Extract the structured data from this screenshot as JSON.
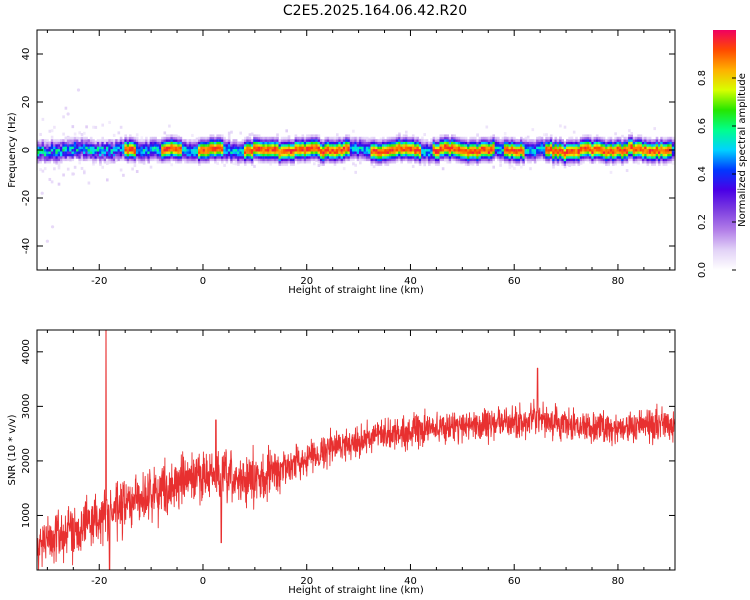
{
  "title": "C2E5.2025.164.06.42.R20",
  "colors": {
    "signal_line": "#e83030",
    "frame": "#000000",
    "background": "#ffffff"
  },
  "chart_data": [
    {
      "type": "heatmap",
      "xlabel": "Height of straight line (km)",
      "ylabel": "Frequency (Hz)",
      "xlim": [
        -32,
        91
      ],
      "ylim": [
        -50,
        50
      ],
      "x_ticks": [
        -20,
        0,
        20,
        40,
        60,
        80
      ],
      "y_ticks": [
        -40,
        -20,
        0,
        20,
        40
      ],
      "colorbar": {
        "label": "Normalized spectral amplitude",
        "range": [
          0.0,
          1.0
        ],
        "ticks": [
          "0.0",
          "0.2",
          "0.4",
          "0.6",
          "0.8"
        ],
        "colormap": [
          "#ffffff",
          "#e2d2f7",
          "#b27ee8",
          "#7d3ee0",
          "#4a00e6",
          "#0038ff",
          "#00d2ff",
          "#00ff8c",
          "#26e600",
          "#d8ff00",
          "#ffb000",
          "#ff4a00",
          "#f00060"
        ]
      },
      "description_values": {
        "center_frequency_hz": 0,
        "band_halfwidth_hz": 5,
        "high_amplitude_segments_km": [
          [
            -15,
            -13
          ],
          [
            -8,
            -4
          ],
          [
            -1,
            4
          ],
          [
            8,
            28
          ],
          [
            32,
            42
          ],
          [
            44,
            56
          ],
          [
            58,
            62
          ],
          [
            66,
            90
          ]
        ]
      }
    },
    {
      "type": "line",
      "xlabel": "Height of straight line (km)",
      "ylabel": "SNR (10 * v/v)",
      "xlim": [
        -32,
        91
      ],
      "ylim": [
        0,
        4400
      ],
      "x_ticks": [
        -20,
        0,
        20,
        40,
        60,
        80
      ],
      "y_ticks": [
        1000,
        2000,
        3000,
        4000
      ],
      "trend_x": [
        -32,
        -25,
        -20,
        -10,
        0,
        5,
        10,
        15,
        20,
        25,
        30,
        40,
        50,
        60,
        64,
        70,
        80,
        91
      ],
      "trend_y": [
        450,
        750,
        950,
        1400,
        1750,
        1650,
        1650,
        1850,
        2050,
        2250,
        2380,
        2550,
        2650,
        2700,
        2750,
        2650,
        2600,
        2700
      ],
      "spikes": [
        {
          "x": -18.7,
          "y": 4400
        },
        {
          "x": -18.0,
          "y": 0
        },
        {
          "x": 2.5,
          "y": 2750
        },
        {
          "x": 3.5,
          "y": 500
        },
        {
          "x": 64.5,
          "y": 3700
        }
      ]
    }
  ]
}
